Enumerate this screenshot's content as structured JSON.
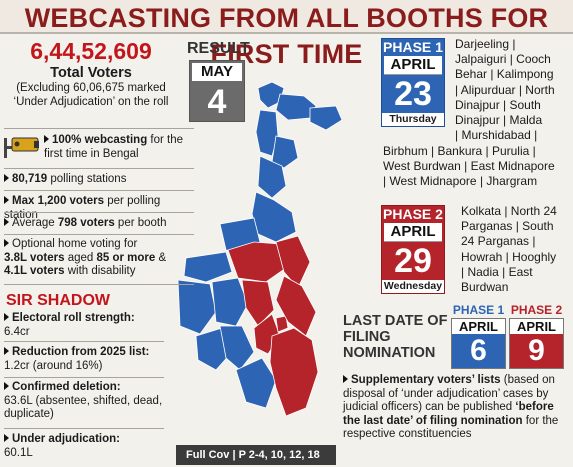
{
  "headline": "WEBCASTING FROM ALL BOOTHS FOR FIRST TIME",
  "voters": {
    "total": "6,44,52,609",
    "label": "Total Voters",
    "exclusion": "(Excluding 60,06,675 marked ‘Under Adjudication’ on the roll"
  },
  "result": {
    "label": "RESULT",
    "month": "MAY",
    "day": "4"
  },
  "facts": [
    {
      "bold": "100% webcasting",
      "text": " for the first time in Bengal"
    },
    {
      "bold": "80,719",
      "text": " polling stations"
    },
    {
      "bold": "Max 1,200 voters",
      "text": " per polling station"
    },
    {
      "pre": "Average ",
      "bold": "798 voters",
      "text": " per booth"
    }
  ],
  "home_voting": {
    "line1": "Optional home voting for",
    "v1": "3.8L voters",
    "mid": " aged ",
    "age": "85 or more",
    "amp": " &",
    "v2": "4.1L voters",
    "tail": " with disability"
  },
  "sir": {
    "title": "SIR SHADOW",
    "items": [
      {
        "head": "Electoral roll strength:",
        "body": " 6.4cr"
      },
      {
        "head": "Reduction from 2025 list:",
        "body": "1.2cr (around 16%)"
      },
      {
        "head": "Confirmed deletion:",
        "body": "63.6L (absentee, shifted, dead, duplicate)"
      },
      {
        "head": "Under adjudication:",
        "body": "60.1L"
      }
    ]
  },
  "phase1": {
    "label": "PHASE 1",
    "month": "APRIL",
    "day": "23",
    "weekday": "Thursday",
    "districts": [
      "Darjeeling |",
      "Jalpaiguri | Cooch",
      "Behar | Kalimpong",
      "| Alipurduar | North",
      "Dinajpur | South",
      "Dinajpur | Malda",
      "| Murshidabad |",
      "Birbhum | Bankura | Purulia |",
      "West Burdwan | East Midnapore",
      "| West Midnapore | Jhargram"
    ]
  },
  "phase2": {
    "label": "PHASE 2",
    "month": "APRIL",
    "day": "29",
    "weekday": "Wednesday",
    "districts": [
      "Kolkata | North 24",
      "Parganas | South",
      "24 Parganas |",
      "Howrah | Hooghly",
      "| Nadia | East",
      "Burdwan"
    ]
  },
  "nomination": {
    "title": "LAST DATE OF FILING NOMINATION",
    "p1": {
      "label": "PHASE 1",
      "month": "APRIL",
      "day": "6"
    },
    "p2": {
      "label": "PHASE 2",
      "month": "APRIL",
      "day": "9"
    }
  },
  "supplementary": {
    "bold1": "Supplementary voters’ lists",
    "t1": " (based on disposal of ‘under adjudication’ cases by judicial officers) can be published ",
    "bold2": "‘before the last date’ of filing nomination",
    "t2": " for the respective constituencies"
  },
  "fullcov": "Full Cov | P 2-4, 10, 12, 18",
  "colors": {
    "phase1": "#2d64b4",
    "phase2": "#b5232b",
    "red": "#c2161c",
    "headline": "#8a1c1c"
  }
}
